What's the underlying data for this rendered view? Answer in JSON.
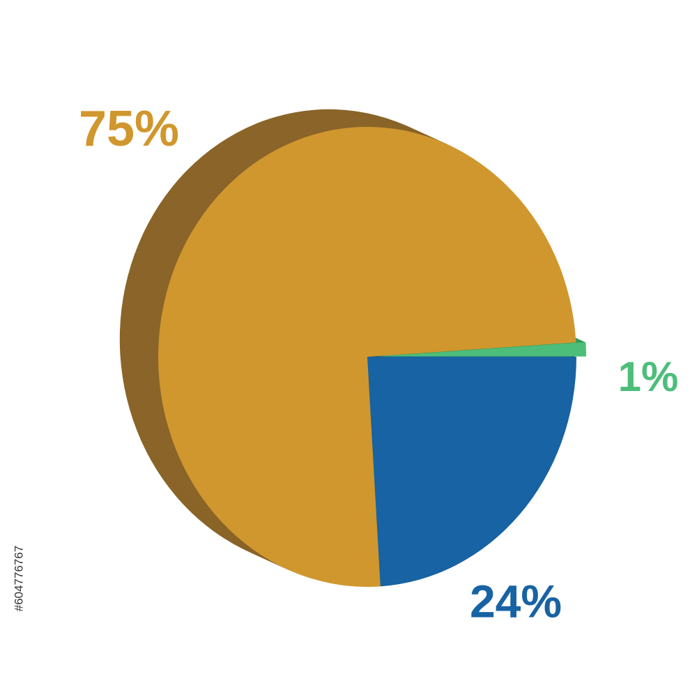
{
  "chart_data": {
    "type": "pie",
    "categories": [
      "24%",
      "75%",
      "1%"
    ],
    "values": [
      24,
      75,
      1
    ],
    "value_labels": [
      "24%",
      "75%",
      "1%"
    ],
    "colors": [
      "#1763a3",
      "#d0972e",
      "#4dbe7a"
    ],
    "side_colors": [
      "#0e4a7e",
      "#8a6428",
      "#2f9a5a"
    ],
    "exploded": [
      false,
      false,
      true
    ]
  },
  "side_text": "#604776767"
}
